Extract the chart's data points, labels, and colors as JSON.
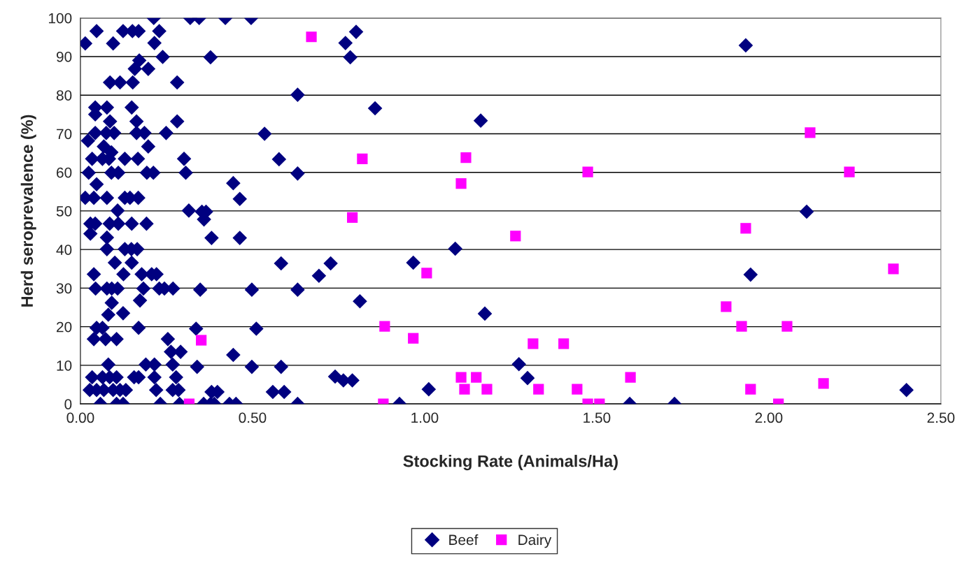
{
  "chart_data": {
    "type": "scatter",
    "xlabel": "Stocking Rate (Animals/Ha)",
    "ylabel": "Herd seroprevalence (%)",
    "xlim": [
      0,
      2.5
    ],
    "xticks": [
      {
        "value": 0,
        "label": "0.00"
      },
      {
        "value": 0.5,
        "label": "0.50"
      },
      {
        "value": 1,
        "label": "1.00"
      },
      {
        "value": 1.5,
        "label": "1.50"
      },
      {
        "value": 2,
        "label": "2.00"
      },
      {
        "value": 2.5,
        "label": "2.50"
      }
    ],
    "ylim": [
      0,
      100
    ],
    "yticks": [
      0,
      10,
      20,
      30,
      40,
      50,
      60,
      70,
      80,
      90,
      100
    ],
    "grid": "y",
    "legend": "bottom",
    "series": [
      {
        "name": "Beef",
        "color": "#000080",
        "marker": "diamond",
        "x": [
          0.213,
          0.319,
          0.345,
          0.421,
          0.496,
          0.047,
          0.124,
          0.151,
          0.169,
          0.229,
          0.014,
          0.095,
          0.215,
          0.239,
          0.171,
          0.158,
          0.197,
          0.086,
          0.115,
          0.152,
          0.281,
          0.043,
          0.077,
          0.149,
          0.043,
          0.086,
          0.163,
          0.281,
          0.043,
          0.075,
          0.098,
          0.163,
          0.186,
          0.249,
          0.022,
          0.068,
          0.197,
          0.09,
          0.034,
          0.064,
          0.083,
          0.129,
          0.167,
          0.301,
          0.024,
          0.09,
          0.11,
          0.193,
          0.212,
          0.306,
          0.047,
          0.014,
          0.039,
          0.077,
          0.129,
          0.144,
          0.168,
          0.108,
          0.315,
          0.029,
          0.043,
          0.085,
          0.11,
          0.149,
          0.192,
          0.029,
          0.077,
          0.077,
          0.129,
          0.148,
          0.165,
          0.1,
          0.149,
          0.039,
          0.125,
          0.178,
          0.207,
          0.221,
          0.044,
          0.077,
          0.091,
          0.108,
          0.183,
          0.229,
          0.244,
          0.269,
          0.173,
          0.091,
          0.081,
          0.124,
          0.047,
          0.064,
          0.169,
          0.039,
          0.073,
          0.105,
          0.254,
          0.263,
          0.291,
          0.081,
          0.19,
          0.215,
          0.268,
          0.034,
          0.064,
          0.085,
          0.105,
          0.156,
          0.169,
          0.215,
          0.278,
          0.027,
          0.047,
          0.068,
          0.095,
          0.115,
          0.132,
          0.22,
          0.268,
          0.285,
          0.058,
          0.105,
          0.124,
          0.232,
          0.288,
          0.801,
          0.77,
          0.784,
          0.378,
          0.631,
          0.856,
          0.535,
          0.577,
          0.631,
          0.444,
          0.463,
          0.353,
          0.365,
          0.359,
          0.381,
          0.463,
          0.583,
          0.727,
          0.693,
          0.348,
          0.498,
          0.631,
          0.812,
          0.336,
          0.511,
          0.444,
          0.339,
          0.498,
          0.583,
          0.74,
          0.764,
          0.79,
          0.381,
          0.398,
          0.559,
          0.592,
          0.358,
          0.378,
          0.389,
          0.433,
          0.452,
          0.631,
          0.967,
          1.012,
          0.927,
          1.089,
          1.163,
          1.175,
          1.274,
          1.299,
          1.596,
          1.726,
          2.4,
          1.947,
          2.11,
          1.933
        ],
        "values": [
          100,
          100,
          100,
          100,
          100,
          96.6,
          96.6,
          96.6,
          96.6,
          96.6,
          93.4,
          93.4,
          93.5,
          89.9,
          89,
          86.8,
          86.8,
          83.3,
          83.3,
          83.3,
          83.3,
          76.8,
          76.8,
          76.8,
          75,
          73.2,
          73.2,
          73.2,
          70.2,
          70.2,
          70.2,
          70.2,
          70.2,
          70.2,
          68.2,
          66.7,
          66.7,
          65.2,
          63.5,
          63.5,
          63.5,
          63.5,
          63.5,
          63.5,
          59.9,
          59.9,
          59.9,
          59.9,
          59.9,
          59.9,
          56.9,
          53.4,
          53.4,
          53.4,
          53.4,
          53.4,
          53.4,
          50.1,
          50.1,
          46.7,
          46.7,
          46.7,
          46.7,
          46.7,
          46.7,
          44.1,
          43.1,
          40.1,
          40.1,
          40.1,
          40.1,
          36.6,
          36.6,
          33.6,
          33.6,
          33.6,
          33.6,
          33.6,
          29.9,
          29.9,
          29.9,
          29.9,
          29.9,
          29.9,
          29.9,
          29.9,
          26.8,
          26.2,
          23.1,
          23.5,
          19.7,
          19.7,
          19.7,
          16.8,
          16.8,
          16.8,
          16.8,
          13.5,
          13.5,
          10.2,
          10.2,
          10.2,
          10.2,
          6.9,
          6.9,
          6.9,
          6.9,
          6.9,
          6.9,
          6.9,
          6.9,
          3.6,
          3.6,
          3.6,
          3.6,
          3.6,
          3.6,
          3.6,
          3.6,
          3.6,
          0,
          0,
          0,
          0,
          0,
          96.4,
          93.5,
          89.8,
          89.8,
          80.1,
          76.6,
          70,
          63.4,
          59.7,
          57.2,
          53.1,
          49.8,
          49.8,
          47.8,
          43,
          43,
          36.4,
          36.4,
          33.2,
          29.6,
          29.6,
          29.6,
          26.6,
          19.5,
          19.5,
          12.7,
          9.6,
          9.6,
          9.6,
          7.1,
          6.1,
          6.1,
          3.1,
          3.1,
          3.1,
          3.1,
          0,
          0,
          0,
          0,
          0,
          0,
          36.6,
          3.8,
          0,
          40.2,
          73.4,
          23.4,
          10.3,
          6.7,
          0,
          0,
          3.6,
          33.5,
          49.8,
          92.9
        ]
      },
      {
        "name": "Dairy",
        "color": "#ff00ff",
        "marker": "square",
        "x": [
          0.671,
          0.819,
          0.79,
          0.351,
          0.316,
          0.88,
          0.884,
          0.967,
          1.006,
          1.106,
          1.12,
          1.106,
          1.116,
          1.15,
          1.181,
          1.264,
          1.315,
          1.404,
          1.331,
          1.443,
          1.474,
          1.474,
          1.508,
          1.598,
          1.876,
          1.921,
          1.933,
          1.947,
          2.028,
          2.053,
          2.12,
          2.159,
          2.234,
          2.362
        ],
        "values": [
          95.1,
          63.5,
          48.3,
          16.5,
          0,
          0,
          20.1,
          17,
          33.9,
          57.1,
          63.8,
          6.9,
          3.8,
          6.9,
          3.8,
          43.5,
          15.6,
          15.6,
          3.8,
          3.8,
          60.1,
          0,
          0,
          6.9,
          25.2,
          20.1,
          45.5,
          3.8,
          0,
          20.1,
          70.3,
          5.3,
          60.1,
          35
        ]
      }
    ]
  }
}
